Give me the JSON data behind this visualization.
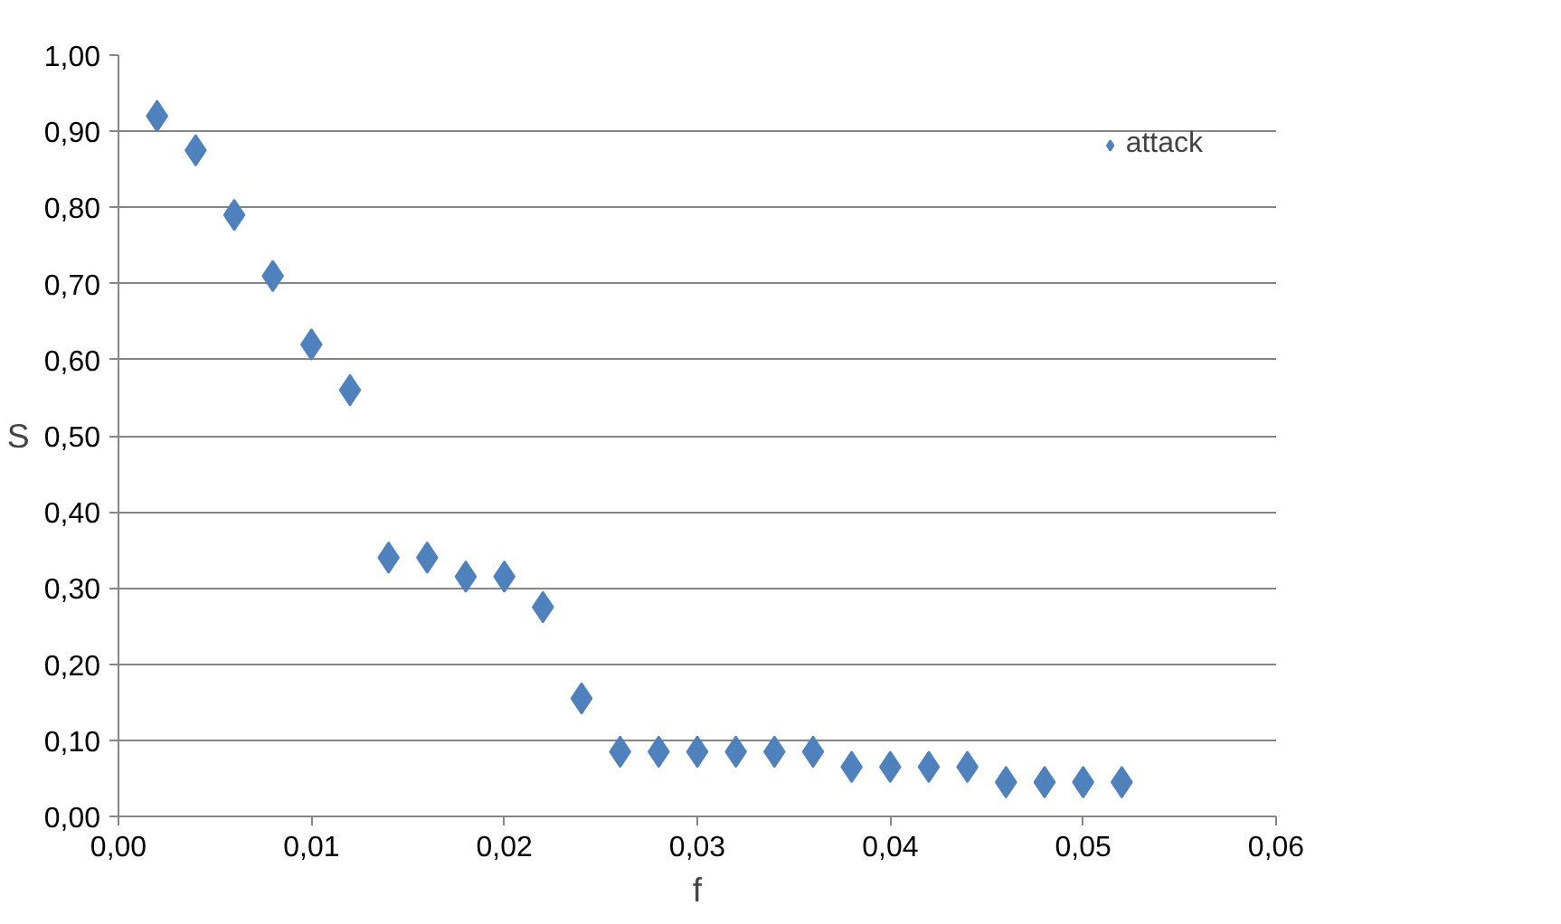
{
  "chart_data": {
    "type": "scatter",
    "xlabel": "f",
    "ylabel": "S",
    "x": [
      0.002,
      0.004,
      0.006,
      0.008,
      0.01,
      0.012,
      0.014,
      0.016,
      0.018,
      0.02,
      0.022,
      0.024,
      0.026,
      0.028,
      0.03,
      0.032,
      0.034,
      0.036,
      0.038,
      0.04,
      0.042,
      0.044,
      0.046,
      0.048,
      0.05,
      0.052
    ],
    "series": [
      {
        "name": "attack",
        "color": "#4f81bd",
        "values": [
          0.92,
          0.875,
          0.79,
          0.71,
          0.62,
          0.56,
          0.34,
          0.34,
          0.315,
          0.315,
          0.275,
          0.155,
          0.085,
          0.085,
          0.085,
          0.085,
          0.085,
          0.085,
          0.065,
          0.065,
          0.065,
          0.065,
          0.045,
          0.045,
          0.045,
          0.045
        ]
      }
    ],
    "xlim": [
      0,
      0.06
    ],
    "ylim": [
      0,
      1
    ],
    "xticks": [
      {
        "value": 0,
        "label": "0,00"
      },
      {
        "value": 0.01,
        "label": "0,01"
      },
      {
        "value": 0.02,
        "label": "0,02"
      },
      {
        "value": 0.03,
        "label": "0,03"
      },
      {
        "value": 0.04,
        "label": "0,04"
      },
      {
        "value": 0.05,
        "label": "0,05"
      },
      {
        "value": 0.06,
        "label": "0,06"
      }
    ],
    "yticks": [
      {
        "value": 0,
        "label": "0,00"
      },
      {
        "value": 0.1,
        "label": "0,10"
      },
      {
        "value": 0.2,
        "label": "0,20"
      },
      {
        "value": 0.3,
        "label": "0,30"
      },
      {
        "value": 0.4,
        "label": "0,40"
      },
      {
        "value": 0.5,
        "label": "0,50"
      },
      {
        "value": 0.6,
        "label": "0,60"
      },
      {
        "value": 0.7,
        "label": "0,70"
      },
      {
        "value": 0.8,
        "label": "0,80"
      },
      {
        "value": 0.9,
        "label": "0,90"
      },
      {
        "value": 1.0,
        "label": "1,00"
      }
    ],
    "grid": "y",
    "legend": "top right",
    "marker": "diamond"
  }
}
